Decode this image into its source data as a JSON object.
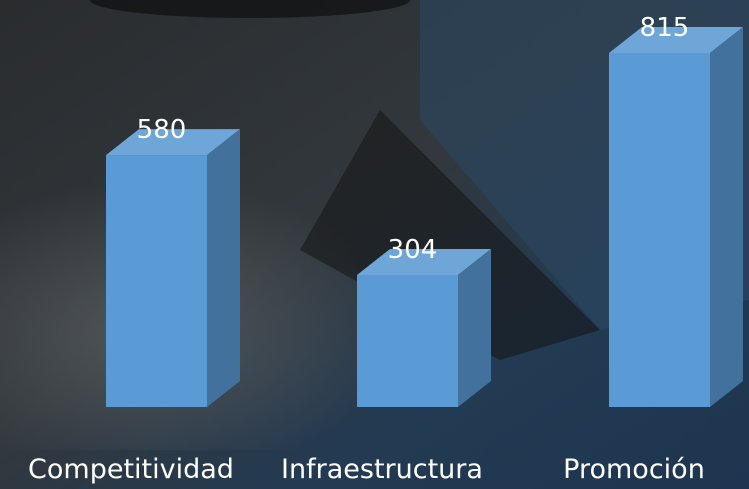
{
  "chart_data": {
    "type": "bar3d",
    "categories": [
      "Competitividad",
      "Infraestructura",
      "Promoción"
    ],
    "values": [
      580,
      304,
      815
    ],
    "color": "#5b9bd5"
  }
}
